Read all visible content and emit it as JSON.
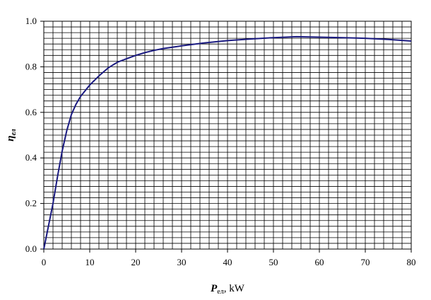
{
  "chart_data": {
    "type": "line",
    "title": "",
    "xlabel": {
      "symbol": "P",
      "subscript": "ел",
      "suffix": ", kW"
    },
    "ylabel": {
      "symbol": "η",
      "subscript": "ел"
    },
    "xlim": [
      0,
      80
    ],
    "ylim": [
      0.0,
      1.0
    ],
    "xticks": [
      "0",
      "10",
      "20",
      "30",
      "40",
      "50",
      "60",
      "70",
      "80"
    ],
    "yticks": [
      "0.0",
      "0.2",
      "0.4",
      "0.6",
      "0.8",
      "1.0"
    ],
    "grid": true,
    "grid_minor_x_step": 2,
    "grid_minor_y_step": 0.025,
    "line_color": "#1a1a80",
    "series": [
      {
        "x": [
          0,
          1,
          2,
          3,
          4,
          5,
          6,
          7,
          8,
          9,
          10,
          12,
          14,
          16,
          18,
          20,
          22,
          24,
          26,
          28,
          30,
          35,
          40,
          45,
          50,
          55,
          60,
          65,
          70,
          75,
          80
        ],
        "values": [
          0.0,
          0.1,
          0.2,
          0.32,
          0.43,
          0.52,
          0.59,
          0.635,
          0.67,
          0.695,
          0.72,
          0.76,
          0.795,
          0.82,
          0.835,
          0.85,
          0.862,
          0.872,
          0.88,
          0.886,
          0.892,
          0.905,
          0.915,
          0.922,
          0.928,
          0.932,
          0.93,
          0.928,
          0.925,
          0.92,
          0.913
        ]
      }
    ]
  }
}
